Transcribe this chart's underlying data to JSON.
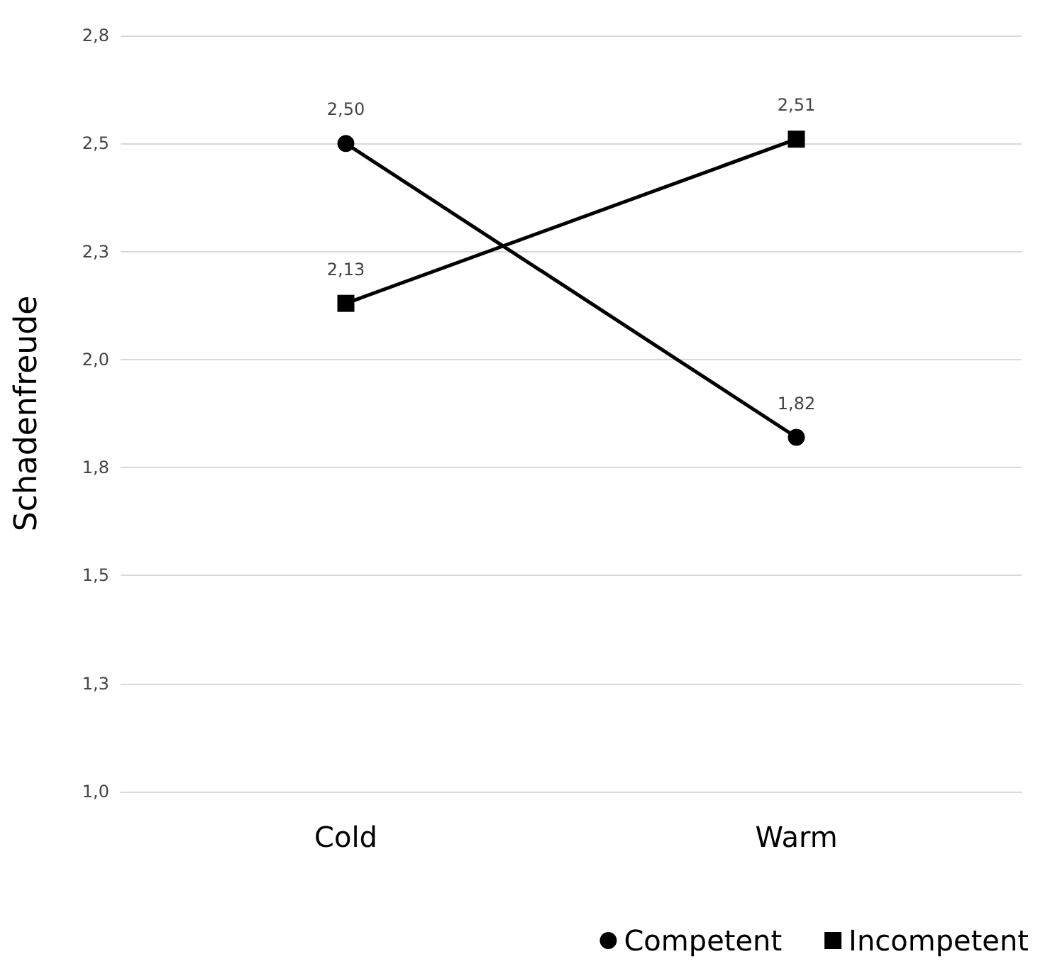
{
  "chart_data": {
    "type": "line",
    "ylabel": "Schadenfreude",
    "categories": [
      "Cold",
      "Warm"
    ],
    "series": [
      {
        "name": "Competent",
        "color": "#000000",
        "marker": "circle",
        "values": [
          2.5,
          1.82
        ],
        "value_labels": [
          "2,50",
          "1,82"
        ]
      },
      {
        "name": "Incompetent",
        "color": "#000000",
        "marker": "square",
        "values": [
          2.13,
          2.51
        ],
        "value_labels": [
          "2,13",
          "2,51"
        ]
      }
    ],
    "ylim": [
      1,
      2.75
    ],
    "yticks": [
      {
        "value": 1,
        "label": "1,0"
      },
      {
        "value": 1.25,
        "label": "1,3"
      },
      {
        "value": 1.5,
        "label": "1,5"
      },
      {
        "value": 1.75,
        "label": "1,8"
      },
      {
        "value": 2,
        "label": "2,0"
      },
      {
        "value": 2.25,
        "label": "2,3"
      },
      {
        "value": 2.5,
        "label": "2,5"
      },
      {
        "value": 2.75,
        "label": "2,8"
      }
    ],
    "grid": "y",
    "legend": "bottom right",
    "line_style": "solid"
  }
}
